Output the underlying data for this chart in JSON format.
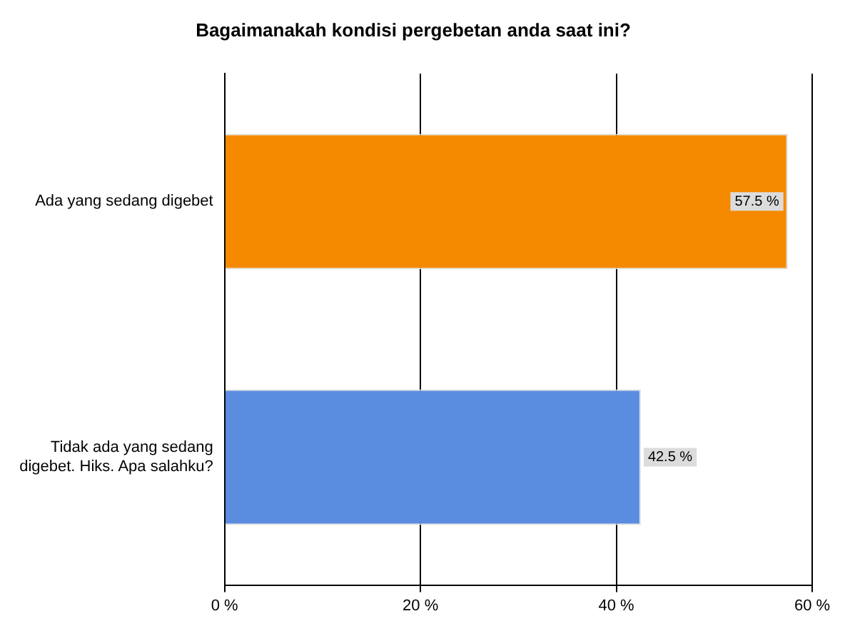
{
  "chart_data": {
    "type": "bar",
    "orientation": "horizontal",
    "title": "Bagaimanakah kondisi pergebetan anda saat ini?",
    "categories": [
      "Ada yang sedang digebet",
      "Tidak ada yang sedang digebet. Hiks. Apa salahku?"
    ],
    "values": [
      57.5,
      42.5
    ],
    "colors": [
      "#f58a00",
      "#5a8ce0"
    ],
    "value_labels": [
      "57.5 %",
      "42.5 %"
    ],
    "xlim": [
      0,
      60
    ],
    "xticks": [
      {
        "value": 0,
        "label": "0 %"
      },
      {
        "value": 20,
        "label": "20 %"
      },
      {
        "value": 40,
        "label": "40 %"
      },
      {
        "value": 60,
        "label": "60 %"
      }
    ],
    "grid": "x",
    "legend": false
  }
}
